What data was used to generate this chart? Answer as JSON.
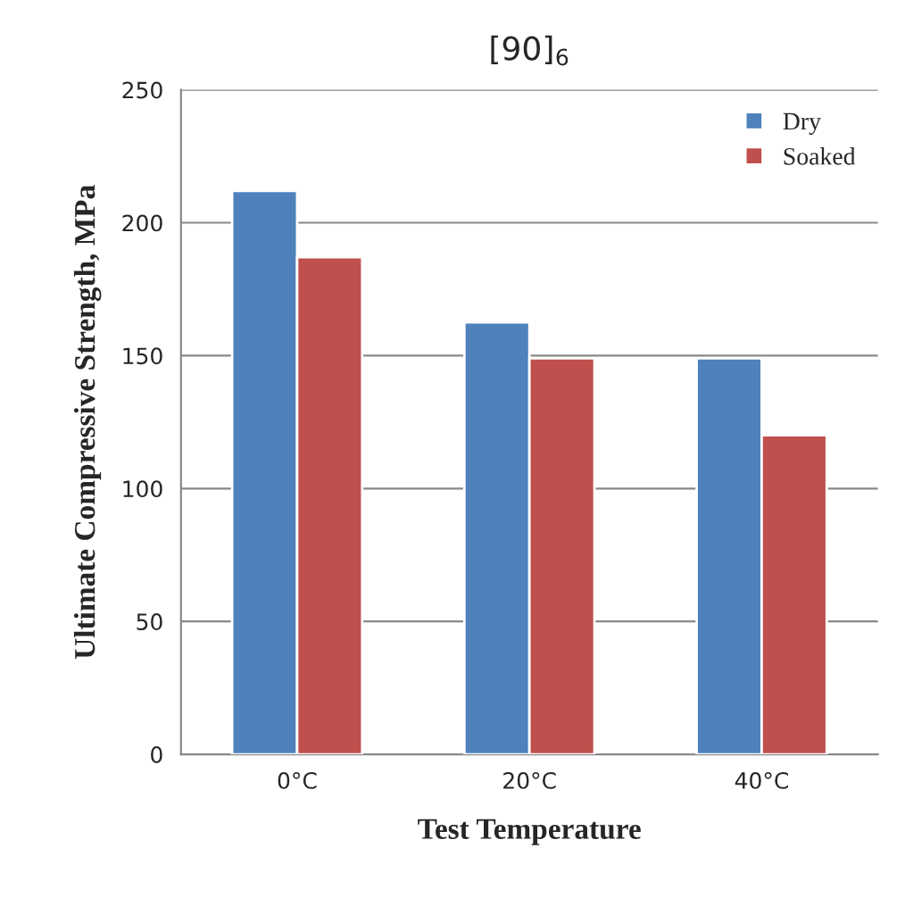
{
  "chart_data": {
    "type": "bar",
    "title": "[90]$_{6}$",
    "xlabel": "Test Temperature",
    "ylabel": "Ultimate Compressive Strength, MPa",
    "categories": [
      "0°C",
      "20°C",
      "40°C"
    ],
    "series": [
      {
        "name": "Dry",
        "color": "#4f81bd",
        "values": [
          212,
          162.5,
          149
        ]
      },
      {
        "name": "Soaked",
        "color": "#c0504d",
        "values": [
          187,
          149,
          120
        ]
      }
    ],
    "ylim": [
      0,
      250
    ],
    "yticks": [
      0,
      50,
      100,
      150,
      200,
      250
    ],
    "grid": "y",
    "legend": "top right"
  }
}
